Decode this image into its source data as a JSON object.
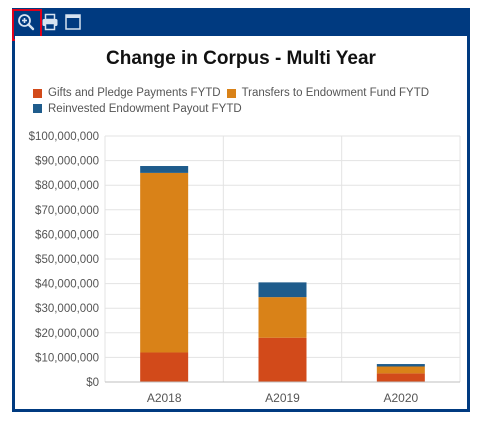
{
  "toolbar": {
    "zoom_icon": "zoom-in-icon",
    "print_icon": "printer-icon",
    "window_icon": "window-icon",
    "highlight_color": "#e0001b",
    "bar_color": "#003a80"
  },
  "chart_data": {
    "type": "bar",
    "stacked": true,
    "title": "Change in Corpus - Multi Year",
    "categories": [
      "A2018",
      "A2019",
      "A2020"
    ],
    "series": [
      {
        "name": "Gifts and Pledge Payments FYTD",
        "color": "#d24a1a",
        "values": [
          12000000,
          18000000,
          3500000
        ]
      },
      {
        "name": "Transfers to Endowment Fund FYTD",
        "color": "#d98218",
        "values": [
          73000000,
          16500000,
          2800000
        ]
      },
      {
        "name": "Reinvested Endowment Payout FYTD",
        "color": "#1f5c8c",
        "values": [
          2800000,
          6000000,
          1000000
        ]
      }
    ],
    "yticks": [
      "$0",
      "$10,000,000",
      "$20,000,000",
      "$30,000,000",
      "$40,000,000",
      "$50,000,000",
      "$60,000,000",
      "$70,000,000",
      "$80,000,000",
      "$90,000,000",
      "$100,000,000"
    ],
    "ylim": [
      0,
      100000000
    ],
    "grid": true,
    "legend_position": "top-left"
  }
}
